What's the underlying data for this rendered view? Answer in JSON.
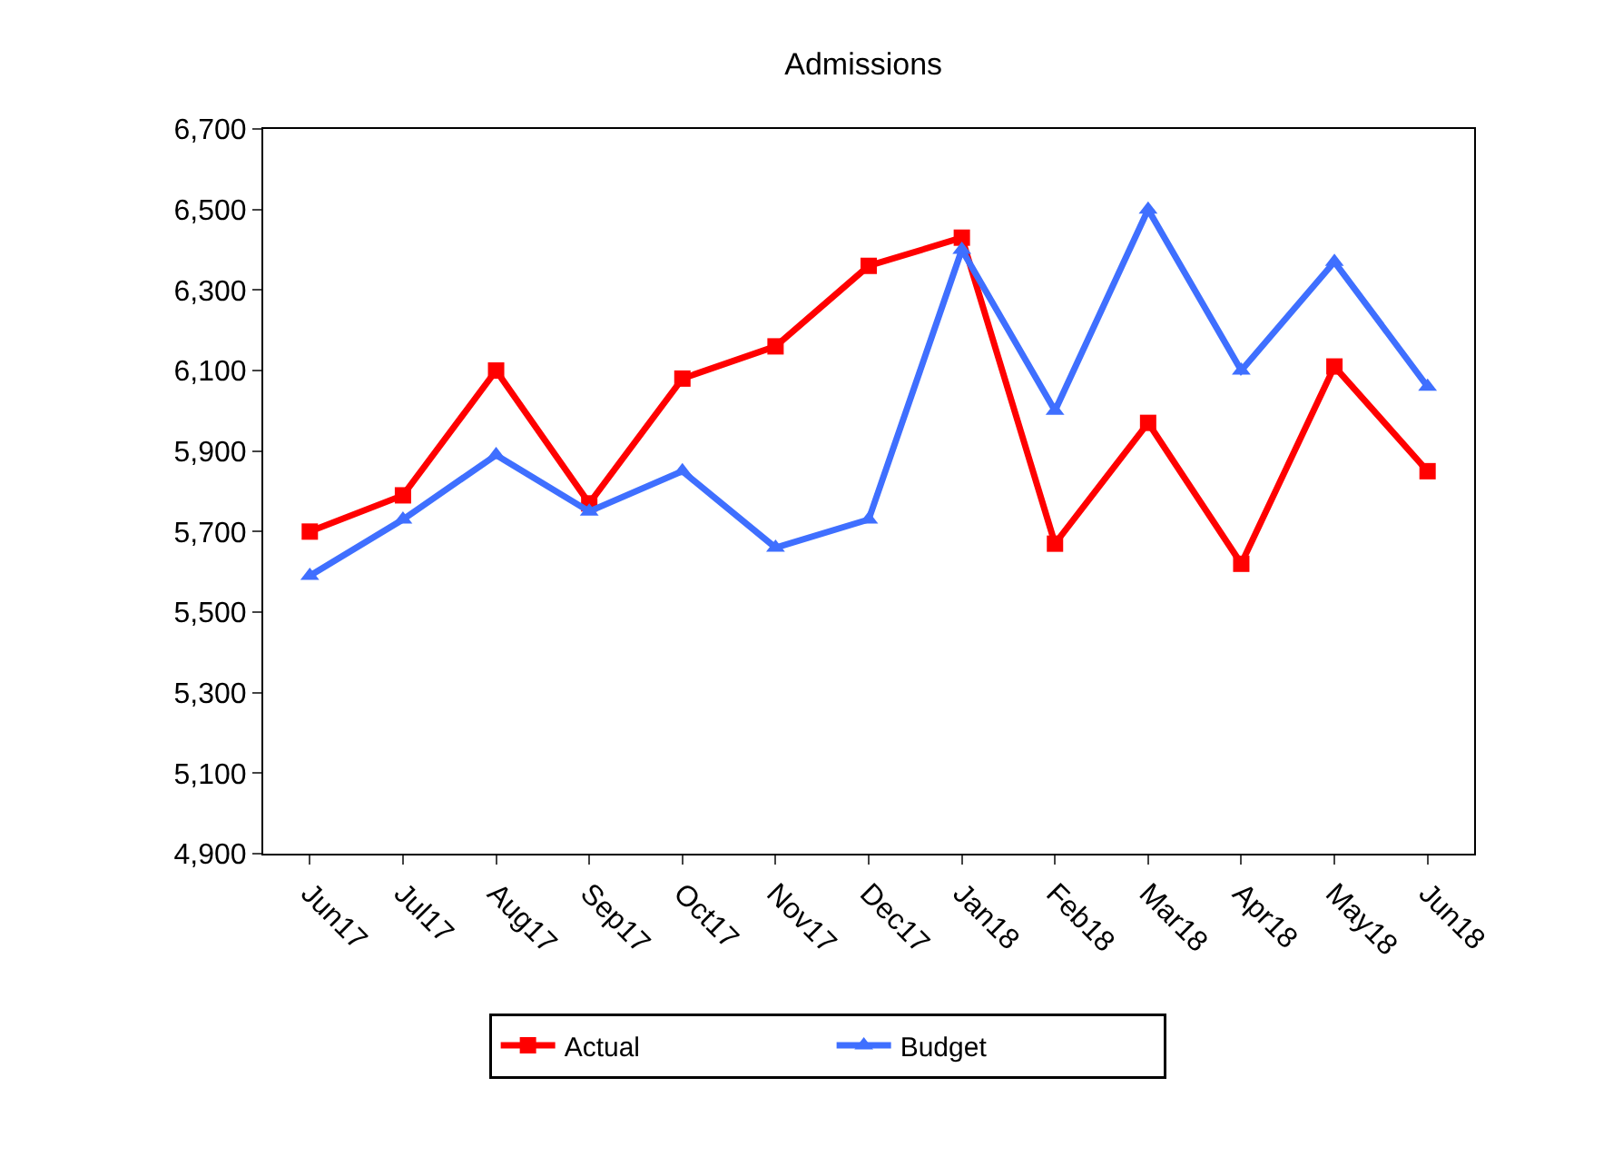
{
  "chart_data": {
    "type": "line",
    "title": "Admissions",
    "categories": [
      "Jun17",
      "Jul17",
      "Aug17",
      "Sep17",
      "Oct17",
      "Nov17",
      "Dec17",
      "Jan18",
      "Feb18",
      "Mar18",
      "Apr18",
      "May18",
      "Jun18"
    ],
    "series": [
      {
        "name": "Actual",
        "color": "#ff0000",
        "marker": "square",
        "values": [
          5700,
          5790,
          6100,
          5770,
          6080,
          6160,
          6360,
          6430,
          5670,
          5970,
          5620,
          6110,
          5850
        ]
      },
      {
        "name": "Budget",
        "color": "#3f6fff",
        "marker": "triangle",
        "values": [
          5590,
          5730,
          5890,
          5750,
          5850,
          5660,
          5730,
          6400,
          6000,
          6500,
          6100,
          6370,
          6060
        ]
      }
    ],
    "ylim": [
      4900,
      6700
    ],
    "yticks": [
      {
        "value": 4900,
        "label": "4,900"
      },
      {
        "value": 5100,
        "label": "5,100"
      },
      {
        "value": 5300,
        "label": "5,300"
      },
      {
        "value": 5500,
        "label": "5,500"
      },
      {
        "value": 5700,
        "label": "5,700"
      },
      {
        "value": 5900,
        "label": "5,900"
      },
      {
        "value": 6100,
        "label": "6,100"
      },
      {
        "value": 6300,
        "label": "6,300"
      },
      {
        "value": 6500,
        "label": "6,500"
      },
      {
        "value": 6700,
        "label": "6,700"
      }
    ],
    "legend": "bottom",
    "line_style": "solid"
  }
}
